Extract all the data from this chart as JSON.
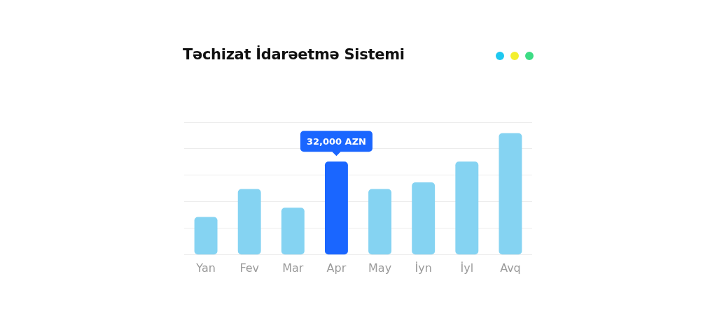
{
  "chart_data": {
    "type": "bar",
    "title": "Təchizat İdarəetmə Sistemi",
    "categories": [
      "Yan",
      "Fev",
      "Mar",
      "Apr",
      "May",
      "İyn",
      "İyl",
      "Avq"
    ],
    "values": [
      13000,
      22600,
      16200,
      32000,
      22600,
      24900,
      32000,
      41800
    ],
    "colors": [
      "#85d3f2",
      "#85d3f2",
      "#85d3f2",
      "#1a66ff",
      "#85d3f2",
      "#85d3f2",
      "#85d3f2",
      "#85d3f2"
    ],
    "value_labels": [
      null,
      null,
      null,
      "32,000 AZN",
      null,
      null,
      null,
      null
    ],
    "ylim": [
      0,
      45500
    ],
    "yticks": [
      {
        "value": 0,
        "label": null
      },
      {
        "value": 9100,
        "label": null
      },
      {
        "value": 18200,
        "label": null
      },
      {
        "value": 27300,
        "label": null
      },
      {
        "value": 36400,
        "label": null
      },
      {
        "value": 45500,
        "label": null
      }
    ],
    "tick_labels": "x",
    "grid": "y",
    "legend": false
  }
}
